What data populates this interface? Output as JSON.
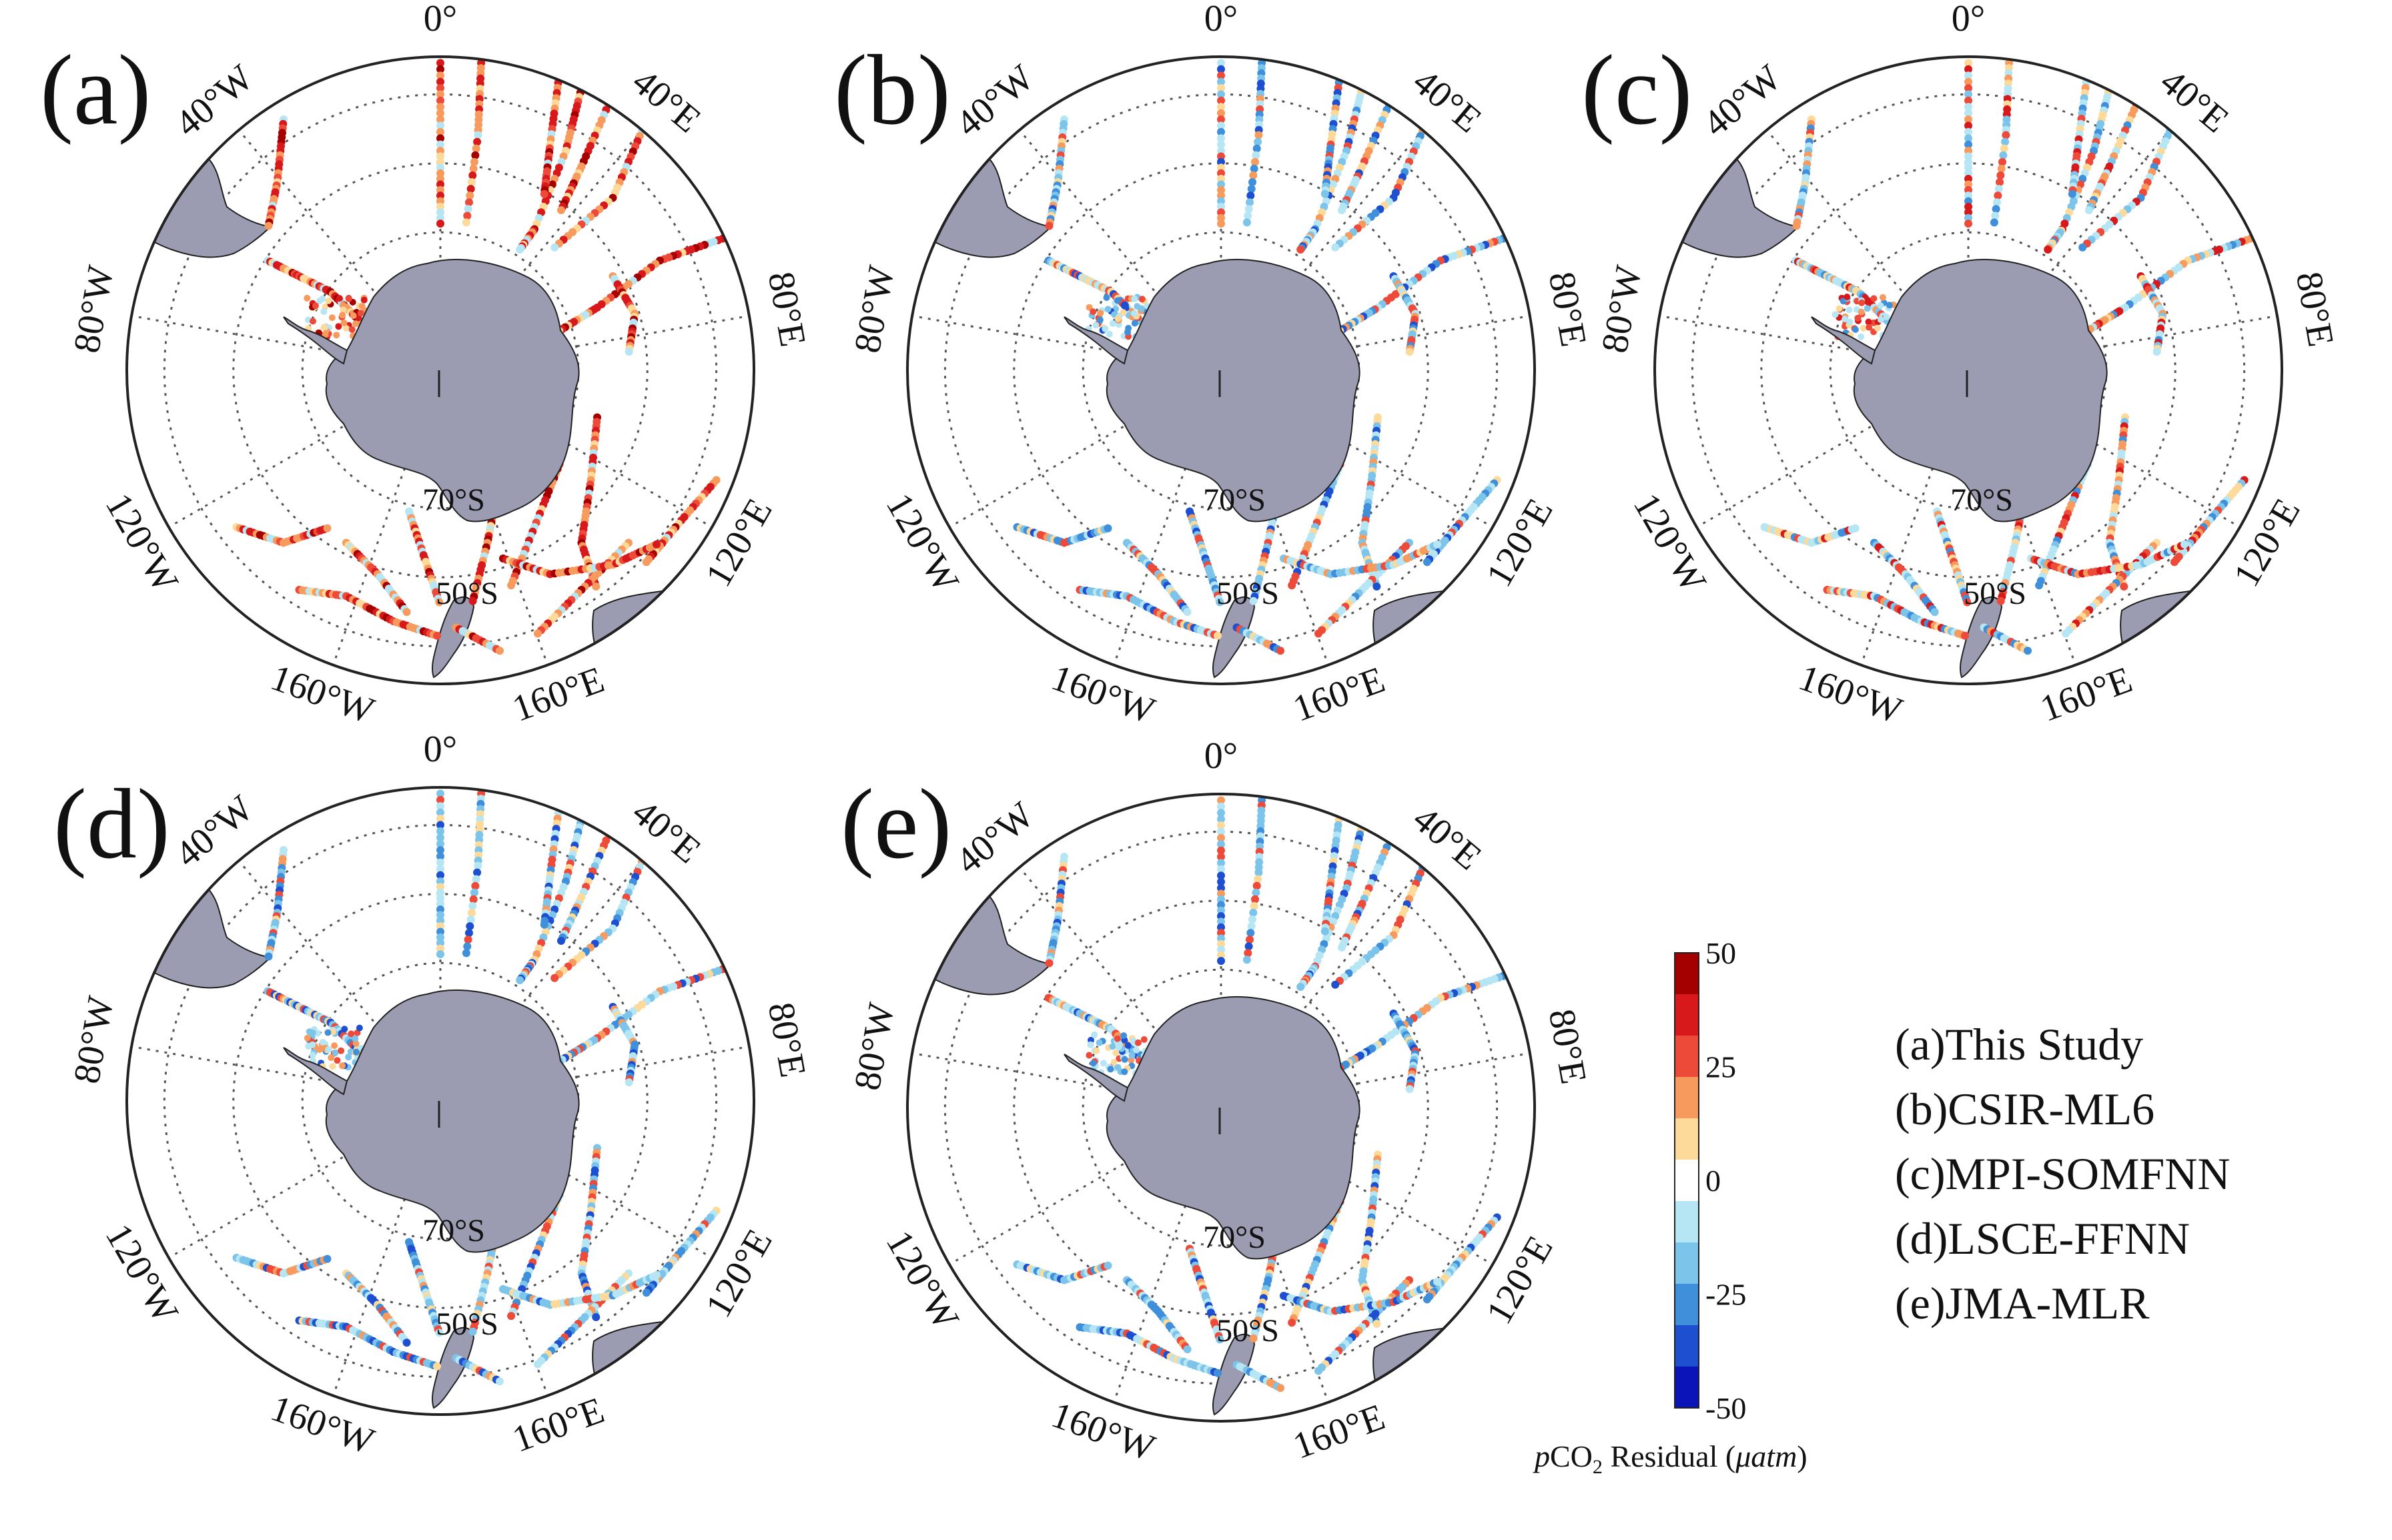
{
  "panels": [
    {
      "id": "a",
      "label": "(a)",
      "track_palette": "warm"
    },
    {
      "id": "b",
      "label": "(b)",
      "track_palette": "cool"
    },
    {
      "id": "c",
      "label": "(c)",
      "track_palette": "mixed"
    },
    {
      "id": "d",
      "label": "(d)",
      "track_palette": "cool"
    },
    {
      "id": "e",
      "label": "(e)",
      "track_palette": "cool"
    }
  ],
  "longitude_labels": [
    "0°",
    "40°E",
    "80°E",
    "120°E",
    "160°E",
    "160°W",
    "120°W",
    "80°W",
    "40°W"
  ],
  "latitude_labels": [
    "70°S",
    "50°S"
  ],
  "colorbar": {
    "ticks": [
      "50",
      "25",
      "0",
      "-25",
      "-50"
    ],
    "title_prefix": "p",
    "title_main": "CO",
    "title_sub": "2",
    "title_rest": " Residual (",
    "title_unit": "μatm",
    "title_close": ")",
    "colors": [
      "#a50000",
      "#d7191c",
      "#ee4a3a",
      "#f79a5e",
      "#fdd99a",
      "#ffffff",
      "#b6e6f4",
      "#7cc4ea",
      "#3f8fdb",
      "#1d4fd0",
      "#0a14b8"
    ]
  },
  "legend": [
    "(a)This Study",
    "(b)CSIR-ML6",
    "(c)MPI-SOMFNN",
    "(d)LSCE-FFNN",
    "(e)JMA-MLR"
  ],
  "colors": {
    "land": "#9b9bb1",
    "land_edge": "#222222",
    "frame": "#222222",
    "grid": "#555555"
  }
}
